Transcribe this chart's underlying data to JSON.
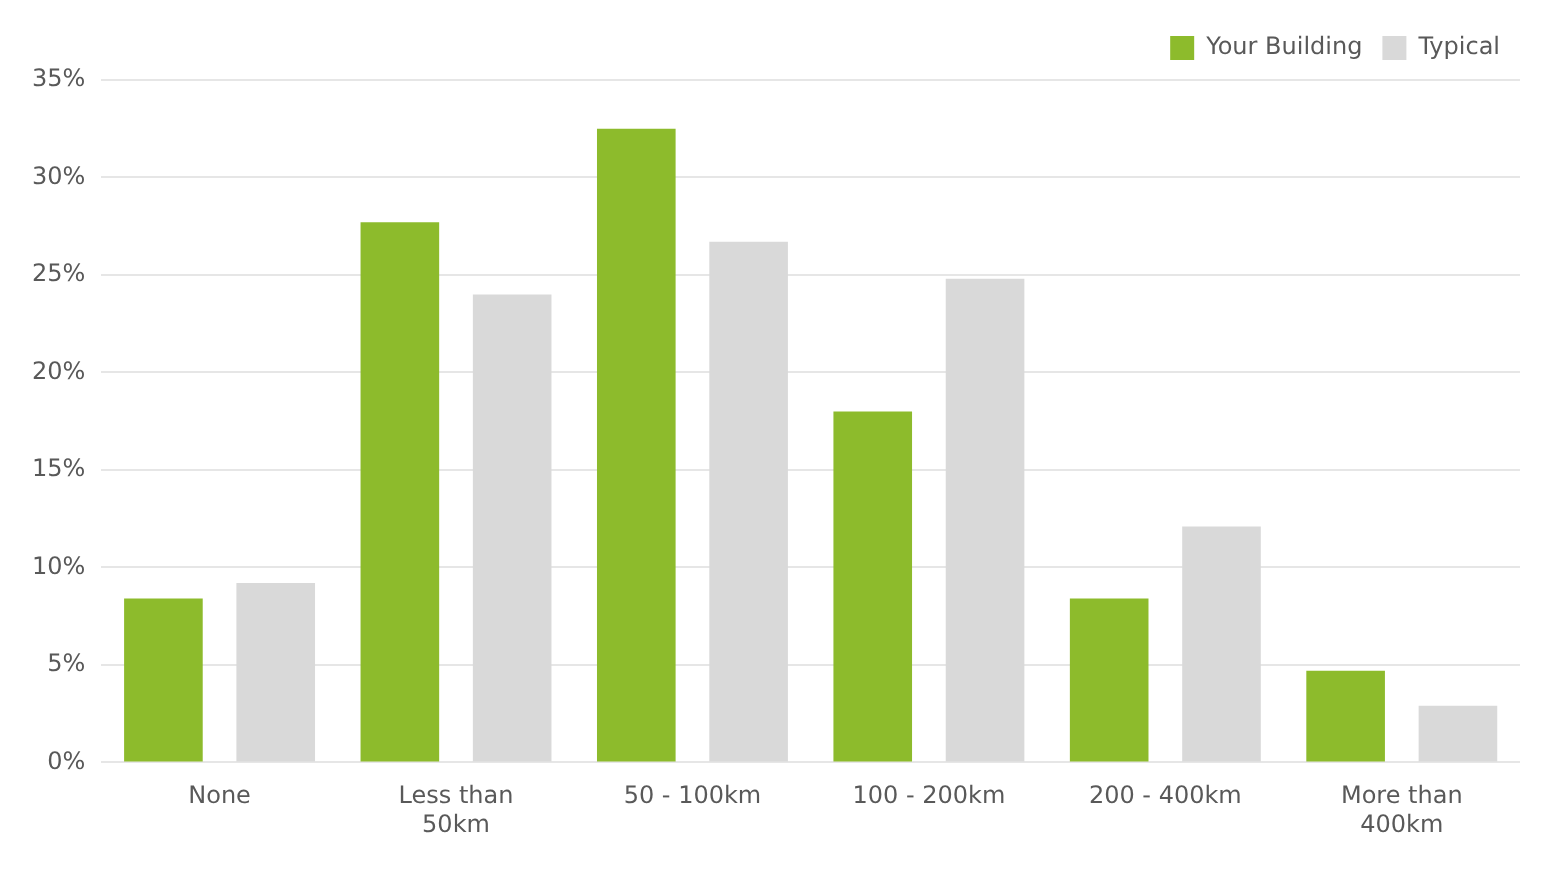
{
  "chart_data": {
    "type": "bar",
    "categories": [
      "None",
      "Less than 50km",
      "50 - 100km",
      "100 - 200km",
      "200 - 400km",
      "More than 400km"
    ],
    "series": [
      {
        "name": "Your Building",
        "color": "#8dbb2c",
        "values": [
          8.4,
          27.7,
          32.5,
          18.0,
          8.4,
          4.7
        ]
      },
      {
        "name": "Typical",
        "color": "#d9d9d9",
        "values": [
          9.2,
          24.0,
          26.7,
          24.8,
          12.1,
          2.9
        ]
      }
    ],
    "ylim": [
      0,
      35
    ],
    "yticks": [
      {
        "value": 0,
        "label": "0%"
      },
      {
        "value": 5,
        "label": "5%"
      },
      {
        "value": 10,
        "label": "10%"
      },
      {
        "value": 15,
        "label": "15%"
      },
      {
        "value": 20,
        "label": "20%"
      },
      {
        "value": 25,
        "label": "25%"
      },
      {
        "value": 30,
        "label": "30%"
      },
      {
        "value": 35,
        "label": "35%"
      }
    ],
    "grid": "y",
    "legend": "top right"
  }
}
